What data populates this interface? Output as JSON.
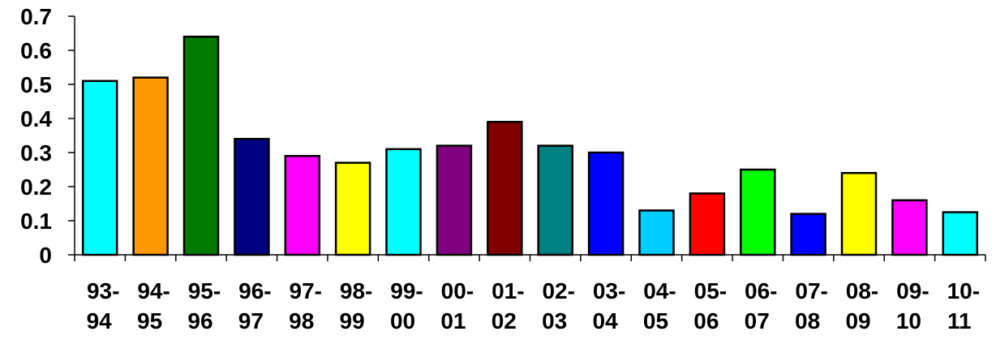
{
  "chart_data": {
    "type": "bar",
    "title": "",
    "xlabel": "",
    "ylabel": "",
    "ylim": [
      0,
      0.7
    ],
    "yticks": [
      "0",
      "0.1",
      "0.2",
      "0.3",
      "0.4",
      "0.5",
      "0.6",
      "0.7"
    ],
    "grid": false,
    "legend": "none",
    "categories": [
      [
        "93-",
        "94"
      ],
      [
        "94-",
        "95"
      ],
      [
        "95-",
        "96"
      ],
      [
        "96-",
        "97"
      ],
      [
        "97-",
        "98"
      ],
      [
        "98-",
        "99"
      ],
      [
        "99-",
        "00"
      ],
      [
        "00-",
        "01"
      ],
      [
        "01-",
        "02"
      ],
      [
        "02-",
        "03"
      ],
      [
        "03-",
        "04"
      ],
      [
        "04-",
        "05"
      ],
      [
        "05-",
        "06"
      ],
      [
        "06-",
        "07"
      ],
      [
        "07-",
        "08"
      ],
      [
        "08-",
        "09"
      ],
      [
        "09-",
        "10"
      ],
      [
        "10-",
        "11"
      ]
    ],
    "values": [
      0.51,
      0.52,
      0.64,
      0.34,
      0.29,
      0.27,
      0.31,
      0.32,
      0.39,
      0.32,
      0.3,
      0.13,
      0.18,
      0.25,
      0.12,
      0.24,
      0.16,
      0.125
    ],
    "colors": [
      "#00FFFF",
      "#FF9900",
      "#007A00",
      "#000080",
      "#FF00FF",
      "#FFFF00",
      "#00FFFF",
      "#800080",
      "#800000",
      "#008080",
      "#0000FF",
      "#00CCFF",
      "#FF0000",
      "#00FF00",
      "#0000FF",
      "#FFFF00",
      "#FF00FF",
      "#00FFFF"
    ]
  }
}
